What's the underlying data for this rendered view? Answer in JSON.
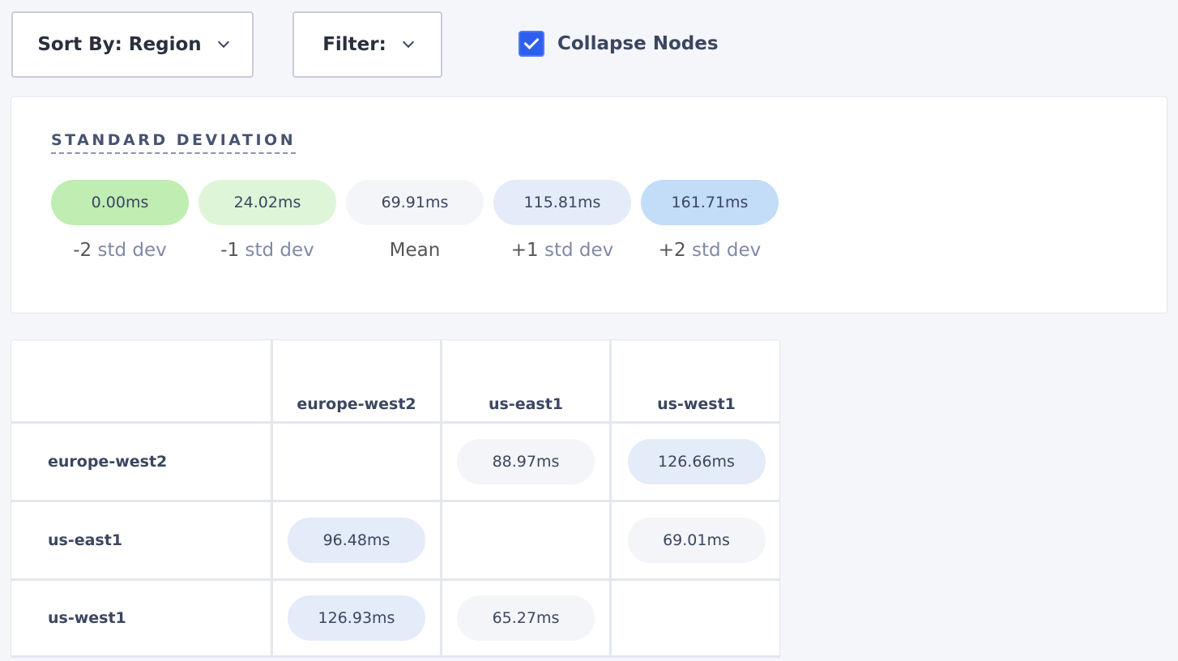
{
  "toolbar": {
    "sort_label": "Sort By: Region",
    "filter_label": "Filter:",
    "collapse_label": "Collapse Nodes",
    "collapse_checked": true
  },
  "legend": {
    "title": "STANDARD DEVIATION",
    "items": [
      {
        "value": "0.00ms",
        "prefix": "-2",
        "label": "std dev",
        "color": "#c0edb2"
      },
      {
        "value": "24.02ms",
        "prefix": "-1",
        "label": "std dev",
        "color": "#dff5d8"
      },
      {
        "value": "69.91ms",
        "prefix": "",
        "label": "Mean",
        "color": "#f4f5f9"
      },
      {
        "value": "115.81ms",
        "prefix": "+1",
        "label": "std dev",
        "color": "#e3ecf8"
      },
      {
        "value": "161.71ms",
        "prefix": "+2",
        "label": "std dev",
        "color": "#c3dcf8"
      }
    ]
  },
  "matrix": {
    "columns": [
      "europe-west2",
      "us-east1",
      "us-west1"
    ],
    "rows": [
      {
        "name": "europe-west2",
        "cells": [
          "",
          "88.97ms",
          "126.66ms"
        ]
      },
      {
        "name": "us-east1",
        "cells": [
          "96.48ms",
          "",
          "69.01ms"
        ]
      },
      {
        "name": "us-west1",
        "cells": [
          "126.93ms",
          "65.27ms",
          ""
        ]
      }
    ]
  }
}
